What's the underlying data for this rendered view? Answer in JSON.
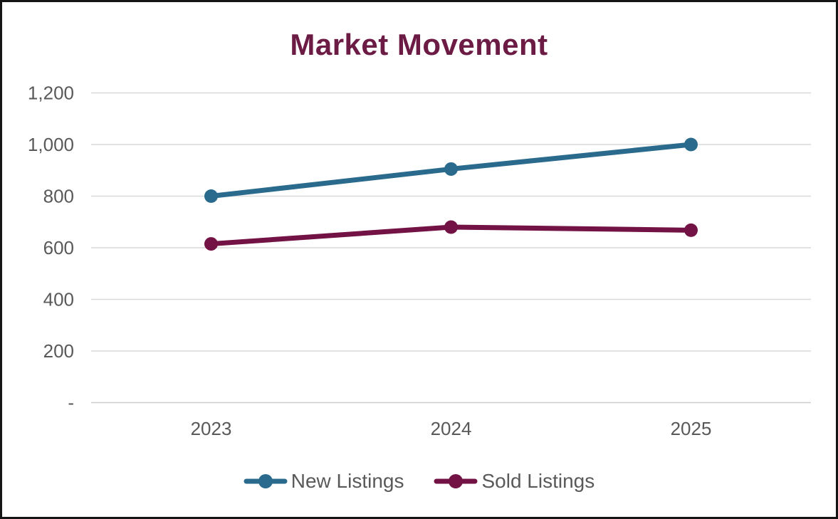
{
  "chart_data": {
    "type": "line",
    "title": "Market Movement",
    "categories": [
      "2023",
      "2024",
      "2025"
    ],
    "series": [
      {
        "name": "New Listings",
        "color": "#2a6b8d",
        "values": [
          800,
          905,
          1000
        ]
      },
      {
        "name": "Sold Listings",
        "color": "#731244",
        "values": [
          615,
          680,
          668
        ]
      }
    ],
    "ylim": [
      0,
      1200
    ],
    "ytick_interval": 200,
    "ytick_labels": [
      "-",
      "200",
      "400",
      "600",
      "800",
      "1,000",
      "1,200"
    ],
    "grid": true,
    "legend_position": "bottom",
    "colors": {
      "title": "#6c1b45",
      "axis_text": "#595959",
      "legend_text": "#595959",
      "gridline": "#d9d9d9",
      "axis_line": "#cccccc",
      "background": "#ffffff",
      "frame_border": "#151515"
    }
  }
}
